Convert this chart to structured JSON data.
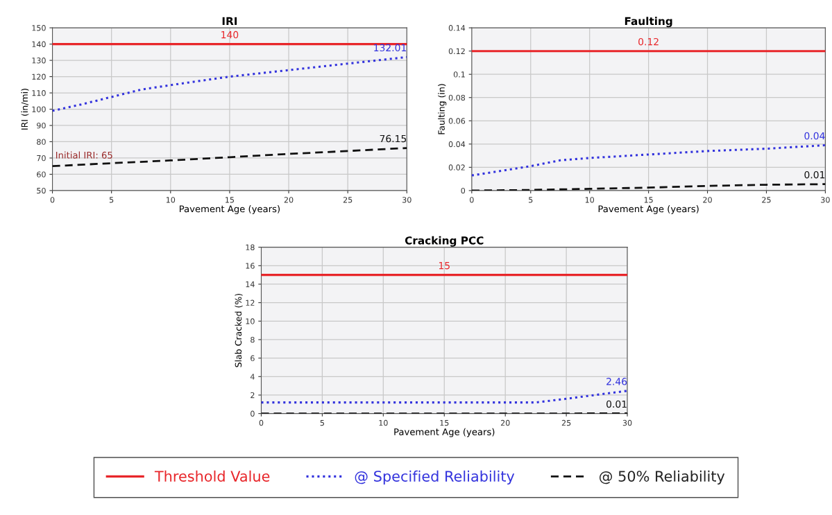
{
  "chart_data": [
    {
      "type": "line",
      "title": "IRI",
      "xlabel": "Pavement Age (years)",
      "ylabel": "IRI (in/mi)",
      "xlim": [
        0,
        30
      ],
      "xticks": [
        0,
        5,
        10,
        15,
        20,
        25,
        30
      ],
      "ylim": [
        50,
        150
      ],
      "yticks": [
        50,
        60,
        70,
        80,
        90,
        100,
        110,
        120,
        130,
        140,
        150
      ],
      "grid": true,
      "legend": "bottom",
      "marker": "none",
      "series": [
        {
          "name": "Threshold Value",
          "color": "#e8262a",
          "line_style": "solid",
          "x": [
            0,
            15,
            30
          ],
          "values": [
            140,
            140,
            140
          ],
          "value_labels": [
            null,
            "140",
            null
          ]
        },
        {
          "name": "@ Specified Reliability",
          "color": "#3333dd",
          "line_style": "dotted",
          "x": [
            0,
            2.5,
            5,
            7.5,
            10,
            15,
            20,
            25,
            30
          ],
          "values": [
            99,
            103,
            107.5,
            112,
            114.8,
            120,
            124,
            128,
            132.01
          ],
          "value_labels": [
            null,
            null,
            null,
            null,
            null,
            null,
            null,
            null,
            "132.01"
          ]
        },
        {
          "name": "@ 50% Reliability",
          "color": "#111111",
          "line_style": "dashed",
          "x": [
            0,
            5,
            10,
            15,
            20,
            25,
            30
          ],
          "values": [
            65,
            66.8,
            68.5,
            70.5,
            72.5,
            74.3,
            76.15
          ],
          "value_labels": [
            null,
            null,
            null,
            null,
            null,
            null,
            "76.15"
          ]
        }
      ],
      "annotations": [
        {
          "text": "Initial IRI: 65",
          "x": 0,
          "y": 65
        }
      ]
    },
    {
      "type": "line",
      "title": "Faulting",
      "xlabel": "Pavement Age (years)",
      "ylabel": "Faulting (in)",
      "xlim": [
        0,
        30
      ],
      "xticks": [
        0,
        5,
        10,
        15,
        20,
        25,
        30
      ],
      "ylim": [
        0,
        0.14
      ],
      "yticks": [
        0,
        0.02,
        0.04,
        0.06,
        0.08,
        {
          "value": 0.1,
          "label": "0.1"
        },
        0.12,
        0.14
      ],
      "grid": true,
      "marker": "none",
      "series": [
        {
          "color": "#e8262a",
          "line_style": "solid",
          "x": [
            0,
            15,
            30
          ],
          "values": [
            0.12,
            0.12,
            0.12
          ],
          "value_labels": [
            null,
            "0.12",
            null
          ]
        },
        {
          "color": "#3333dd",
          "line_style": "dotted",
          "x": [
            0,
            5,
            7.5,
            10,
            15,
            20,
            25,
            30
          ],
          "values": [
            0.013,
            0.021,
            0.026,
            0.028,
            0.031,
            0.034,
            0.036,
            0.039
          ],
          "value_labels": [
            null,
            null,
            null,
            null,
            null,
            null,
            null,
            "0.04"
          ]
        },
        {
          "color": "#111111",
          "line_style": "dashed",
          "x": [
            0,
            5,
            10,
            15,
            20,
            25,
            30
          ],
          "values": [
            0,
            0.0005,
            0.0015,
            0.0025,
            0.004,
            0.005,
            0.0055
          ],
          "value_labels": [
            null,
            null,
            null,
            null,
            null,
            null,
            "0.01"
          ]
        }
      ]
    },
    {
      "type": "line",
      "title": "Cracking PCC",
      "xlabel": "Pavement Age (years)",
      "ylabel": "Slab Cracked (%)",
      "xlim": [
        0,
        30
      ],
      "xticks": [
        0,
        5,
        10,
        15,
        20,
        25,
        30
      ],
      "ylim": [
        0,
        18
      ],
      "yticks": [
        0,
        2,
        4,
        6,
        8,
        10,
        12,
        14,
        16,
        18
      ],
      "grid": true,
      "marker": "none",
      "series": [
        {
          "color": "#e8262a",
          "line_style": "solid",
          "x": [
            0,
            15,
            30
          ],
          "values": [
            15,
            15,
            15
          ],
          "value_labels": [
            null,
            "15",
            null
          ]
        },
        {
          "color": "#3333dd",
          "line_style": "dotted",
          "x": [
            0,
            22.5,
            25,
            30
          ],
          "values": [
            1.2,
            1.2,
            1.6,
            2.46
          ],
          "value_labels": [
            null,
            null,
            null,
            "2.46"
          ]
        },
        {
          "color": "#111111",
          "line_style": "dashed",
          "x": [
            0,
            30
          ],
          "values": [
            0,
            0.01
          ],
          "value_labels": [
            null,
            "0.01"
          ]
        }
      ]
    }
  ]
}
